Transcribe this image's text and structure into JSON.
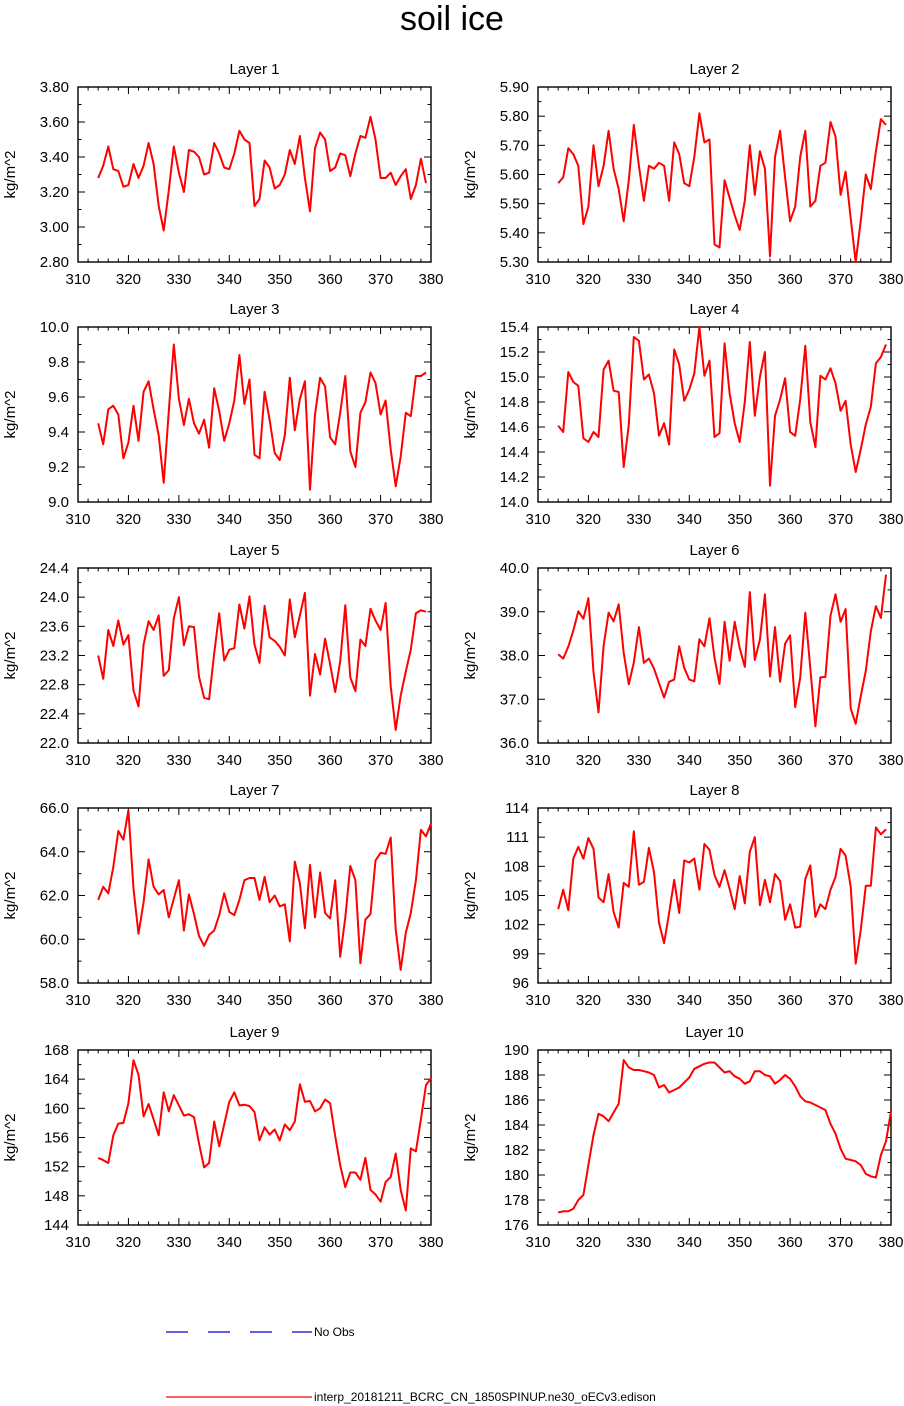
{
  "title": "soil ice",
  "colors": {
    "model": "#ff0000",
    "obs": "#0000cd",
    "axis": "#000000"
  },
  "legend": {
    "obs_label": "No Obs",
    "model_label": "interp_20181211_BCRC_CN_1850SPINUP.ne30_oECv3.edison"
  },
  "chart_data": [
    {
      "type": "line",
      "title": "Layer 1",
      "ylabel": "kg/m^2",
      "xlim": [
        310,
        380
      ],
      "xticks": [
        310,
        320,
        330,
        340,
        350,
        360,
        370,
        380
      ],
      "ylim": [
        2.8,
        3.8
      ],
      "yticks": [
        "2.80",
        "3.00",
        "3.20",
        "3.40",
        "3.60",
        "3.80"
      ],
      "x_start": 314,
      "values": [
        3.28,
        3.35,
        3.46,
        3.33,
        3.32,
        3.23,
        3.24,
        3.36,
        3.28,
        3.35,
        3.48,
        3.36,
        3.12,
        2.98,
        3.21,
        3.46,
        3.31,
        3.2,
        3.44,
        3.43,
        3.4,
        3.3,
        3.31,
        3.48,
        3.42,
        3.34,
        3.33,
        3.42,
        3.55,
        3.5,
        3.48,
        3.12,
        3.16,
        3.38,
        3.34,
        3.22,
        3.24,
        3.3,
        3.44,
        3.36,
        3.52,
        3.28,
        3.09,
        3.45,
        3.54,
        3.5,
        3.32,
        3.34,
        3.42,
        3.41,
        3.29,
        3.42,
        3.52,
        3.51,
        3.63,
        3.5,
        3.28,
        3.28,
        3.31,
        3.24,
        3.29,
        3.33,
        3.16,
        3.24,
        3.39,
        3.25
      ]
    },
    {
      "type": "line",
      "title": "Layer 2",
      "ylabel": "kg/m^2",
      "xlim": [
        310,
        380
      ],
      "xticks": [
        310,
        320,
        330,
        340,
        350,
        360,
        370,
        380
      ],
      "ylim": [
        5.3,
        5.9
      ],
      "yticks": [
        "5.30",
        "5.40",
        "5.50",
        "5.60",
        "5.70",
        "5.80",
        "5.90"
      ],
      "x_start": 314,
      "values": [
        5.57,
        5.59,
        5.69,
        5.67,
        5.63,
        5.43,
        5.49,
        5.7,
        5.56,
        5.63,
        5.75,
        5.62,
        5.55,
        5.44,
        5.58,
        5.77,
        5.63,
        5.51,
        5.63,
        5.62,
        5.64,
        5.63,
        5.51,
        5.71,
        5.67,
        5.57,
        5.56,
        5.66,
        5.81,
        5.71,
        5.72,
        5.36,
        5.35,
        5.58,
        5.52,
        5.46,
        5.41,
        5.51,
        5.7,
        5.53,
        5.68,
        5.62,
        5.32,
        5.66,
        5.75,
        5.59,
        5.44,
        5.49,
        5.66,
        5.75,
        5.49,
        5.51,
        5.63,
        5.64,
        5.78,
        5.73,
        5.53,
        5.61,
        5.45,
        5.3,
        5.44,
        5.6,
        5.55,
        5.68,
        5.79,
        5.77
      ]
    },
    {
      "type": "line",
      "title": "Layer 3",
      "ylabel": "kg/m^2",
      "xlim": [
        310,
        380
      ],
      "xticks": [
        310,
        320,
        330,
        340,
        350,
        360,
        370,
        380
      ],
      "ylim": [
        9.0,
        10.0
      ],
      "yticks": [
        "9.0",
        "9.2",
        "9.4",
        "9.6",
        "9.8",
        "10.0"
      ],
      "x_start": 314,
      "values": [
        9.45,
        9.33,
        9.53,
        9.55,
        9.5,
        9.25,
        9.34,
        9.55,
        9.35,
        9.63,
        9.69,
        9.53,
        9.38,
        9.11,
        9.52,
        9.9,
        9.59,
        9.44,
        9.59,
        9.45,
        9.39,
        9.47,
        9.31,
        9.65,
        9.52,
        9.35,
        9.45,
        9.58,
        9.84,
        9.56,
        9.7,
        9.27,
        9.25,
        9.63,
        9.47,
        9.28,
        9.24,
        9.38,
        9.71,
        9.41,
        9.59,
        9.69,
        9.07,
        9.5,
        9.71,
        9.66,
        9.37,
        9.33,
        9.51,
        9.72,
        9.29,
        9.2,
        9.51,
        9.57,
        9.74,
        9.68,
        9.5,
        9.58,
        9.3,
        9.09,
        9.26,
        9.51,
        9.49,
        9.72,
        9.72,
        9.74
      ]
    },
    {
      "type": "line",
      "title": "Layer 4",
      "ylabel": "kg/m^2",
      "xlim": [
        310,
        380
      ],
      "xticks": [
        310,
        320,
        330,
        340,
        350,
        360,
        370,
        380
      ],
      "ylim": [
        14.0,
        15.4
      ],
      "yticks": [
        "14.0",
        "14.2",
        "14.4",
        "14.6",
        "14.8",
        "15.0",
        "15.2",
        "15.4"
      ],
      "x_start": 314,
      "values": [
        14.61,
        14.56,
        15.04,
        14.96,
        14.93,
        14.51,
        14.48,
        14.56,
        14.52,
        15.06,
        15.13,
        14.89,
        14.88,
        14.28,
        14.62,
        15.32,
        15.29,
        14.98,
        15.02,
        14.87,
        14.53,
        14.63,
        14.46,
        15.22,
        15.1,
        14.81,
        14.9,
        15.03,
        15.4,
        15.01,
        15.13,
        14.52,
        14.55,
        15.27,
        14.87,
        14.63,
        14.48,
        14.8,
        15.28,
        14.69,
        15.0,
        15.2,
        14.13,
        14.69,
        14.82,
        14.99,
        14.56,
        14.53,
        14.82,
        15.25,
        14.64,
        14.44,
        15.01,
        14.98,
        15.07,
        14.95,
        14.73,
        14.81,
        14.46,
        14.24,
        14.42,
        14.62,
        14.76,
        15.11,
        15.16,
        15.26
      ]
    },
    {
      "type": "line",
      "title": "Layer 5",
      "ylabel": "kg/m^2",
      "xlim": [
        310,
        380
      ],
      "xticks": [
        310,
        320,
        330,
        340,
        350,
        360,
        370,
        380
      ],
      "ylim": [
        22.0,
        24.4
      ],
      "yticks": [
        "22.0",
        "22.4",
        "22.8",
        "23.2",
        "23.6",
        "24.0",
        "24.4"
      ],
      "x_start": 314,
      "values": [
        23.2,
        22.88,
        23.55,
        23.33,
        23.68,
        23.35,
        23.48,
        22.72,
        22.5,
        23.35,
        23.67,
        23.55,
        23.75,
        22.92,
        23.0,
        23.71,
        24.0,
        23.34,
        23.6,
        23.59,
        22.91,
        22.62,
        22.6,
        23.23,
        23.78,
        23.13,
        23.28,
        23.3,
        23.9,
        23.57,
        24.01,
        23.35,
        23.1,
        23.88,
        23.45,
        23.4,
        23.32,
        23.2,
        23.97,
        23.45,
        23.75,
        24.06,
        22.65,
        23.22,
        22.94,
        23.43,
        23.08,
        22.7,
        23.12,
        23.89,
        22.9,
        22.71,
        23.42,
        23.33,
        23.84,
        23.68,
        23.55,
        23.92,
        22.78,
        22.18,
        22.65,
        22.98,
        23.28,
        23.78,
        23.82,
        23.8
      ]
    },
    {
      "type": "line",
      "title": "Layer 6",
      "ylabel": "kg/m^2",
      "xlim": [
        310,
        380
      ],
      "xticks": [
        310,
        320,
        330,
        340,
        350,
        360,
        370,
        380
      ],
      "ylim": [
        36.0,
        40.0
      ],
      "yticks": [
        "36.0",
        "37.0",
        "38.0",
        "39.0",
        "40.0"
      ],
      "x_start": 314,
      "values": [
        38.03,
        37.93,
        38.2,
        38.57,
        39.01,
        38.84,
        39.31,
        37.62,
        36.7,
        38.22,
        38.98,
        38.78,
        39.17,
        38.06,
        37.34,
        37.84,
        38.65,
        37.83,
        37.93,
        37.7,
        37.37,
        37.04,
        37.4,
        37.45,
        38.21,
        37.72,
        37.45,
        37.41,
        38.37,
        38.21,
        38.85,
        37.95,
        37.35,
        38.77,
        37.88,
        38.77,
        38.17,
        37.74,
        39.45,
        37.9,
        38.36,
        39.4,
        37.52,
        38.65,
        37.4,
        38.27,
        38.46,
        36.82,
        37.49,
        38.98,
        37.71,
        36.38,
        37.5,
        37.51,
        38.91,
        39.4,
        38.77,
        39.06,
        36.79,
        36.44,
        37.06,
        37.65,
        38.55,
        39.13,
        38.86,
        39.85
      ]
    },
    {
      "type": "line",
      "title": "Layer 7",
      "ylabel": "kg/m^2",
      "xlim": [
        310,
        380
      ],
      "xticks": [
        310,
        320,
        330,
        340,
        350,
        360,
        370,
        380
      ],
      "ylim": [
        58.0,
        66.0
      ],
      "yticks": [
        "58.0",
        "60.0",
        "62.0",
        "64.0",
        "66.0"
      ],
      "x_start": 314,
      "values": [
        61.8,
        62.4,
        62.1,
        63.3,
        64.95,
        64.55,
        65.9,
        62.3,
        60.25,
        61.7,
        63.65,
        62.4,
        62.05,
        62.25,
        61.0,
        61.85,
        62.7,
        60.4,
        62.05,
        61.15,
        60.15,
        59.7,
        60.2,
        60.4,
        61.1,
        62.1,
        61.25,
        61.1,
        61.8,
        62.7,
        62.8,
        62.8,
        61.8,
        62.85,
        61.7,
        62.0,
        61.5,
        61.6,
        59.9,
        63.55,
        62.55,
        60.5,
        63.4,
        61.0,
        63.05,
        61.2,
        60.95,
        62.7,
        59.2,
        61.0,
        63.35,
        62.7,
        58.9,
        60.9,
        61.15,
        63.6,
        63.95,
        63.9,
        64.65,
        60.45,
        58.6,
        60.3,
        61.2,
        62.7,
        65.0,
        64.7,
        65.3
      ]
    },
    {
      "type": "line",
      "title": "Layer 8",
      "ylabel": "kg/m^2",
      "xlim": [
        310,
        380
      ],
      "xticks": [
        310,
        320,
        330,
        340,
        350,
        360,
        370,
        380
      ],
      "ylim": [
        96,
        114
      ],
      "yticks": [
        "96",
        "99",
        "102",
        "105",
        "108",
        "111",
        "114"
      ],
      "x_start": 314,
      "values": [
        103.6,
        105.6,
        103.5,
        108.8,
        110.0,
        108.8,
        110.9,
        109.8,
        104.8,
        104.3,
        107.2,
        103.3,
        101.7,
        106.3,
        105.9,
        111.6,
        106.1,
        106.4,
        109.9,
        107.4,
        102.2,
        100.1,
        103.2,
        106.6,
        103.2,
        108.6,
        108.4,
        108.8,
        105.6,
        110.3,
        109.7,
        107.1,
        105.9,
        107.6,
        105.7,
        103.6,
        107.0,
        104.2,
        109.5,
        111.0,
        104.0,
        106.6,
        104.3,
        107.2,
        106.5,
        102.5,
        104.1,
        101.7,
        101.8,
        106.7,
        108.1,
        102.8,
        104.1,
        103.6,
        105.6,
        106.9,
        109.8,
        109.1,
        105.9,
        98.0,
        101.4,
        106.0,
        106.0,
        112.0,
        111.3,
        111.8
      ]
    },
    {
      "type": "line",
      "title": "Layer 9",
      "ylabel": "kg/m^2",
      "xlim": [
        310,
        380
      ],
      "xticks": [
        310,
        320,
        330,
        340,
        350,
        360,
        370,
        380
      ],
      "ylim": [
        144,
        168
      ],
      "yticks": [
        "144",
        "148",
        "152",
        "156",
        "160",
        "164",
        "168"
      ],
      "x_start": 314,
      "values": [
        153.2,
        152.9,
        152.5,
        156.3,
        157.9,
        158.0,
        160.7,
        166.6,
        164.6,
        158.9,
        160.6,
        158.5,
        156.3,
        162.2,
        159.6,
        161.8,
        160.4,
        159.0,
        159.2,
        158.8,
        155.2,
        151.9,
        152.5,
        158.2,
        154.8,
        157.8,
        160.9,
        162.2,
        160.4,
        160.5,
        160.3,
        159.5,
        155.6,
        157.4,
        156.4,
        157.1,
        155.6,
        157.8,
        157.0,
        158.2,
        163.3,
        160.9,
        161.0,
        159.6,
        160.0,
        161.2,
        160.7,
        156.2,
        152.2,
        149.2,
        151.2,
        151.2,
        150.2,
        153.2,
        148.8,
        148.2,
        147.2,
        149.9,
        150.6,
        153.8,
        148.8,
        146.0,
        154.5,
        154.1,
        158.5,
        163.2,
        164.1
      ]
    },
    {
      "type": "line",
      "title": "Layer 10",
      "ylabel": "kg/m^2",
      "xlim": [
        310,
        380
      ],
      "xticks": [
        310,
        320,
        330,
        340,
        350,
        360,
        370,
        380
      ],
      "ylim": [
        176,
        190
      ],
      "yticks": [
        "176",
        "178",
        "180",
        "182",
        "184",
        "186",
        "188",
        "190"
      ],
      "x_start": 314,
      "values": [
        177.0,
        177.1,
        177.1,
        177.3,
        178.0,
        178.4,
        180.8,
        183.2,
        184.9,
        184.7,
        184.3,
        185.0,
        185.7,
        189.2,
        188.6,
        188.4,
        188.4,
        188.3,
        188.2,
        188.0,
        187.0,
        187.2,
        186.6,
        186.8,
        187.0,
        187.4,
        187.8,
        188.5,
        188.7,
        188.9,
        189.0,
        189.0,
        188.6,
        188.2,
        188.3,
        187.9,
        187.7,
        187.3,
        187.5,
        188.3,
        188.3,
        188.0,
        187.9,
        187.3,
        187.6,
        188.0,
        187.7,
        187.1,
        186.3,
        185.9,
        185.8,
        185.6,
        185.4,
        185.2,
        184.1,
        183.3,
        182.1,
        181.3,
        181.2,
        181.1,
        180.8,
        180.1,
        179.9,
        179.8,
        181.6,
        182.7,
        185.1
      ]
    }
  ]
}
